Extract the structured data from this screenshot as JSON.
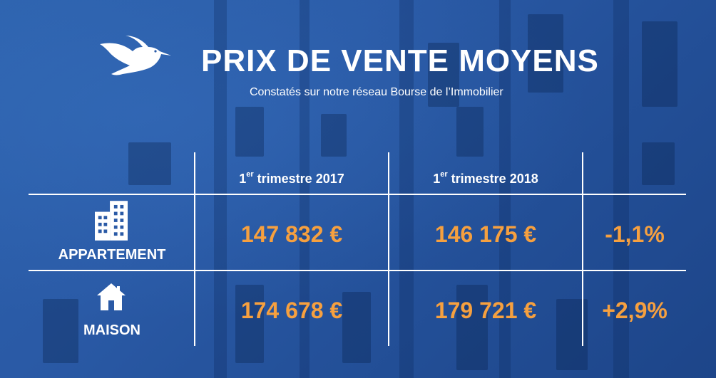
{
  "header": {
    "title": "PRIX DE VENTE MOYENS",
    "subtitle": "Constatés sur notre réseau Bourse de l’Immobilier",
    "logo_icon": "stork-icon"
  },
  "table": {
    "columns": [
      {
        "prefix": "1",
        "sup": "er",
        "label": " trimestre 2017"
      },
      {
        "prefix": "1",
        "sup": "er",
        "label": " trimestre 2018"
      },
      {
        "label": ""
      }
    ],
    "rows": [
      {
        "label": "APPARTEMENT",
        "icon": "apartment-building-icon",
        "value_2017": "147 832 €",
        "value_2018": "146 175 €",
        "change": "-1,1%"
      },
      {
        "label": "MAISON",
        "icon": "house-icon",
        "value_2017": "174 678 €",
        "value_2018": "179 721 €",
        "change": "+2,9%"
      }
    ]
  },
  "colors": {
    "background": "#2a5aa6",
    "text": "#ffffff",
    "accent": "#f6a03f"
  }
}
